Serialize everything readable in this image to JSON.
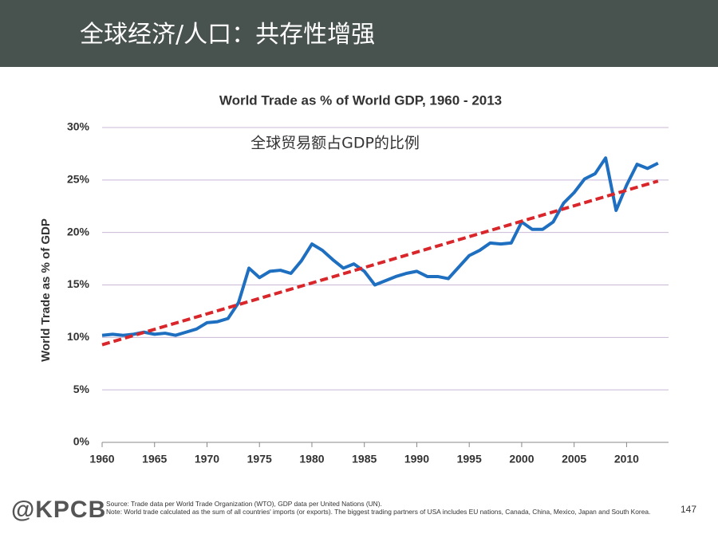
{
  "slide": {
    "title": "全球经济/人口：共存性增强",
    "logo": "@KPCB",
    "source": "Source: Trade data per World Trade Organization (WTO), GDP data per United Nations (UN).",
    "note": "Note: World trade calculated as the sum of all countries' imports (or exports). The biggest trading partners of USA includes EU nations, Canada, China, Mexico, Japan and South Korea.",
    "page_number": 147
  },
  "chart_data": {
    "type": "line",
    "title": "World Trade as % of World GDP, 1960 - 2013",
    "y_label": "World Trade as % of GDP",
    "annotation": "全球贸易额占GDP的比例",
    "x": [
      1960,
      1961,
      1962,
      1963,
      1964,
      1965,
      1966,
      1967,
      1968,
      1969,
      1970,
      1971,
      1972,
      1973,
      1974,
      1975,
      1976,
      1977,
      1978,
      1979,
      1980,
      1981,
      1982,
      1983,
      1984,
      1985,
      1986,
      1987,
      1988,
      1989,
      1990,
      1991,
      1992,
      1993,
      1994,
      1995,
      1996,
      1997,
      1998,
      1999,
      2000,
      2001,
      2002,
      2003,
      2004,
      2005,
      2006,
      2007,
      2008,
      2009,
      2010,
      2011,
      2012,
      2013
    ],
    "series": [
      {
        "color": "#1f6fc1",
        "values": [
          10.2,
          10.3,
          10.2,
          10.3,
          10.5,
          10.3,
          10.4,
          10.2,
          10.5,
          10.8,
          11.4,
          11.5,
          11.8,
          13.3,
          16.6,
          15.7,
          16.3,
          16.4,
          16.1,
          17.3,
          18.9,
          18.3,
          17.4,
          16.6,
          17.0,
          16.3,
          15.0,
          15.4,
          15.8,
          16.1,
          16.3,
          15.8,
          15.8,
          15.6,
          16.7,
          17.8,
          18.3,
          19.0,
          18.9,
          19.0,
          21.0,
          20.3,
          20.3,
          21.0,
          22.8,
          23.8,
          25.1,
          25.6,
          27.1,
          22.1,
          24.5,
          26.5,
          26.1,
          26.6
        ]
      }
    ],
    "trend": {
      "color": "#d9262b",
      "x": [
        1960,
        2013
      ],
      "values": [
        9.3,
        24.9
      ]
    },
    "xlim": [
      1960,
      2014
    ],
    "xticks": [
      1960,
      1965,
      1970,
      1975,
      1980,
      1985,
      1990,
      1995,
      2000,
      2005,
      2010
    ],
    "ylim": [
      0,
      30
    ],
    "yticks": [
      {
        "value": 0,
        "label": "0%"
      },
      {
        "value": 5,
        "label": "5%"
      },
      {
        "value": 10,
        "label": "10%"
      },
      {
        "value": 15,
        "label": "15%"
      },
      {
        "value": 20,
        "label": "20%"
      },
      {
        "value": 25,
        "label": "25%"
      },
      {
        "value": 30,
        "label": "30%"
      }
    ],
    "grid": true
  }
}
